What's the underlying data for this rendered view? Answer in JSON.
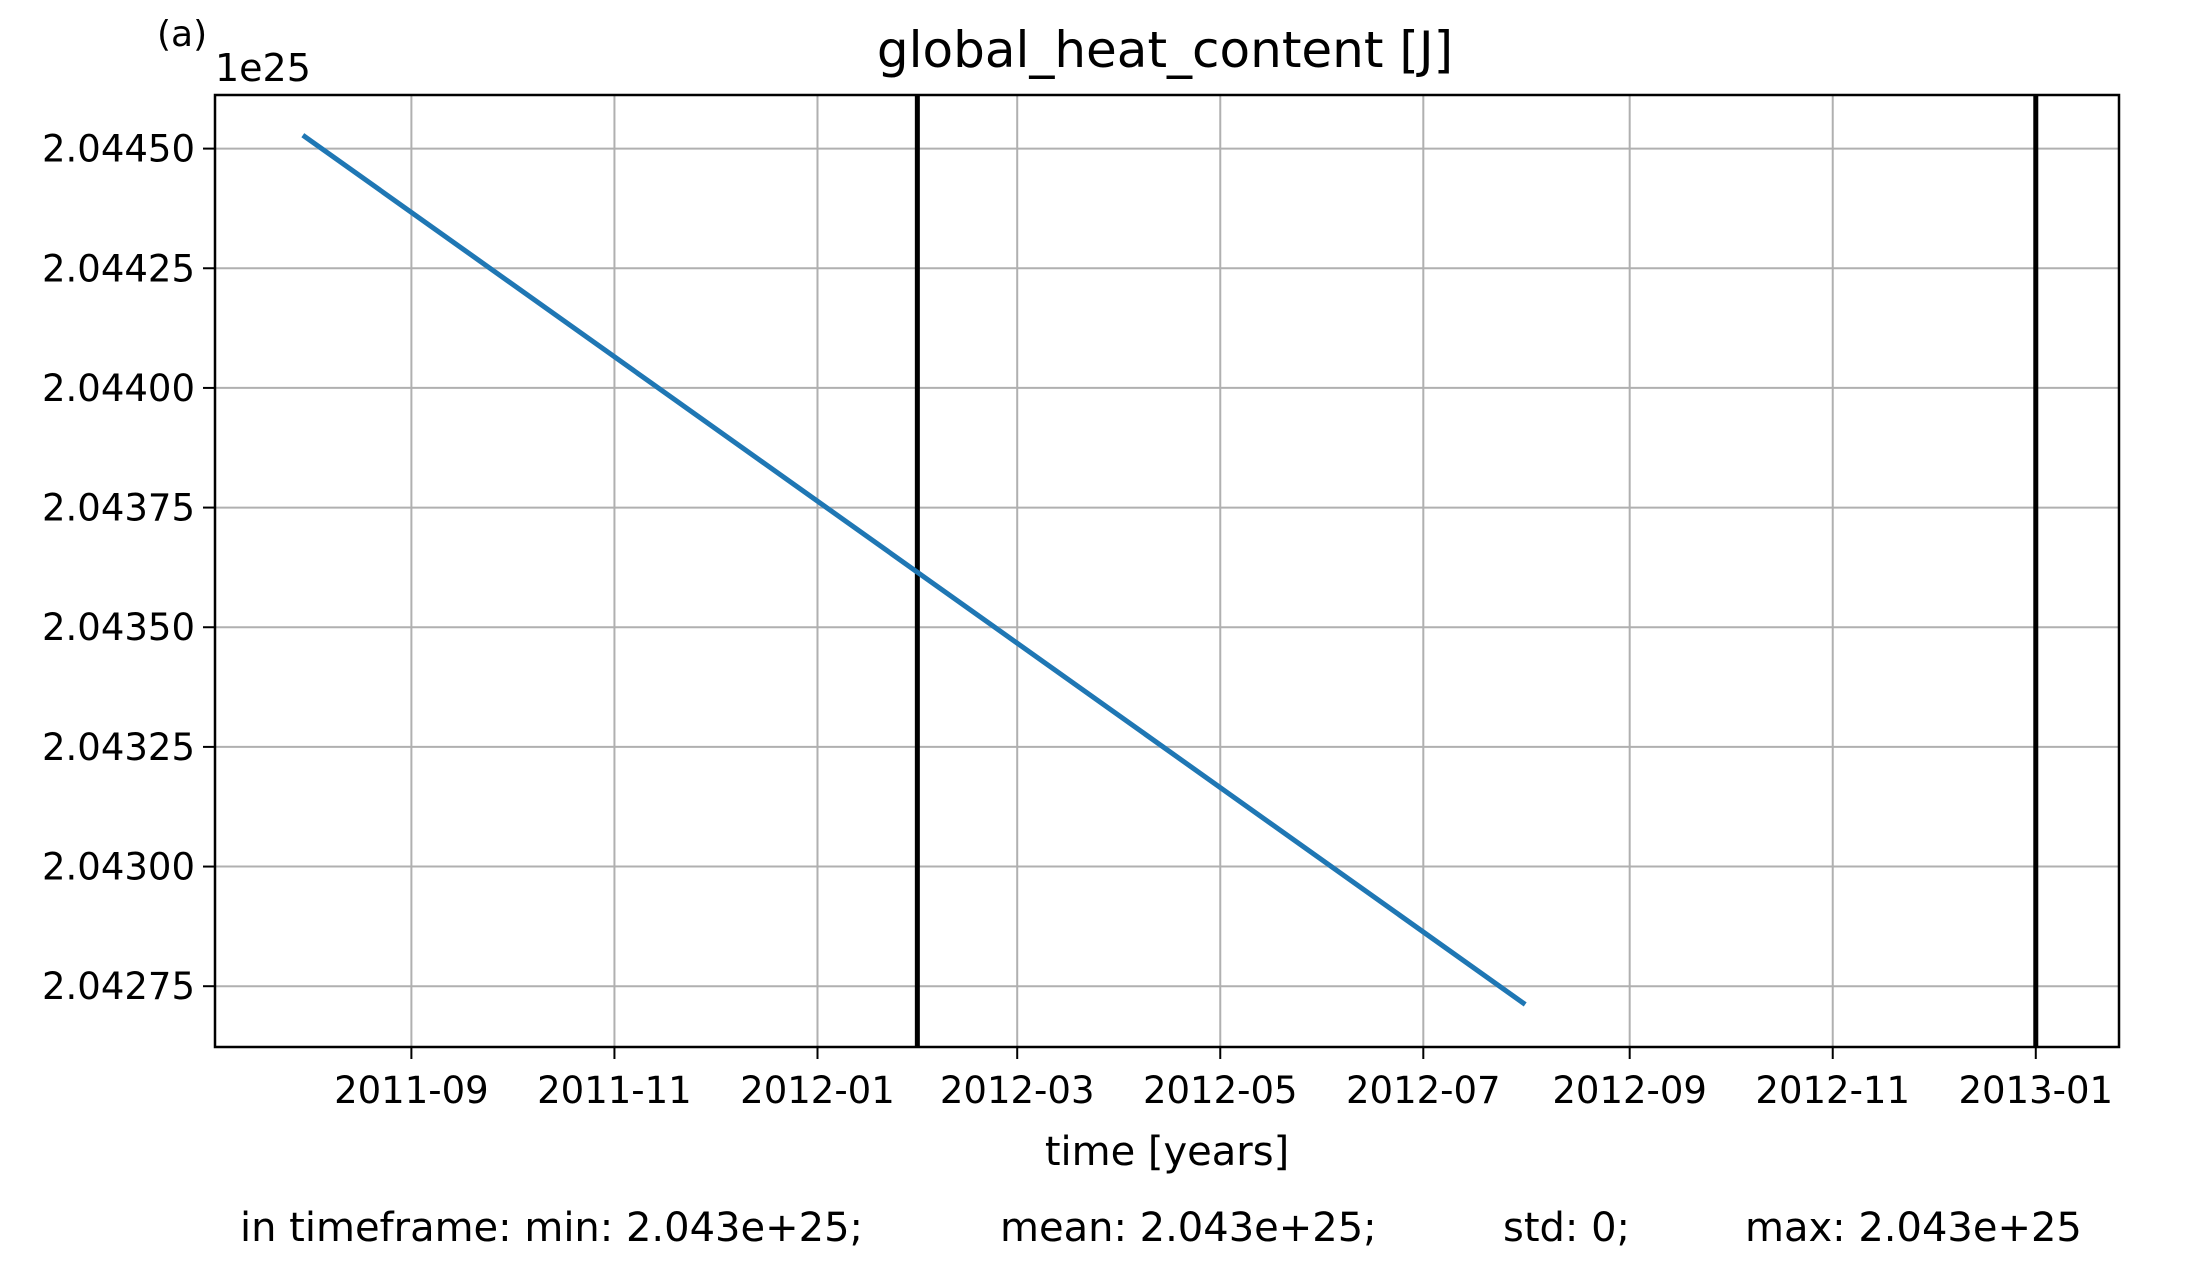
{
  "chart_data": {
    "type": "line",
    "panel_label": "(a)",
    "title": "global_heat_content [J]",
    "xlabel": "time [years]",
    "ylabel": "",
    "y_offset_label": "1e25",
    "x_ticks": [
      "2011-09",
      "2011-11",
      "2012-01",
      "2012-03",
      "2012-05",
      "2012-07",
      "2012-09",
      "2012-11",
      "2013-01"
    ],
    "x_range": [
      "2011-07-04",
      "2013-01-26"
    ],
    "y_ticks": [
      "2.04275",
      "2.04300",
      "2.04325",
      "2.04350",
      "2.04375",
      "2.04400",
      "2.04425",
      "2.04450"
    ],
    "y_range": [
      2.042623,
      2.044612
    ],
    "grid": true,
    "legend": "none",
    "series": [
      {
        "x": [
          "2011-07-31",
          "2012-07-31"
        ],
        "y": [
          2.044525,
          2.042715
        ],
        "color": "#1f77b4"
      }
    ],
    "vertical_lines": [
      {
        "x": "2012-01-31",
        "color": "#000000"
      },
      {
        "x": "2013-01-01",
        "color": "#000000"
      }
    ]
  },
  "stats": {
    "min": "in timeframe: min: 2.043e+25;",
    "mean": "mean: 2.043e+25;",
    "std": "std: 0;",
    "max": "max: 2.043e+25"
  }
}
